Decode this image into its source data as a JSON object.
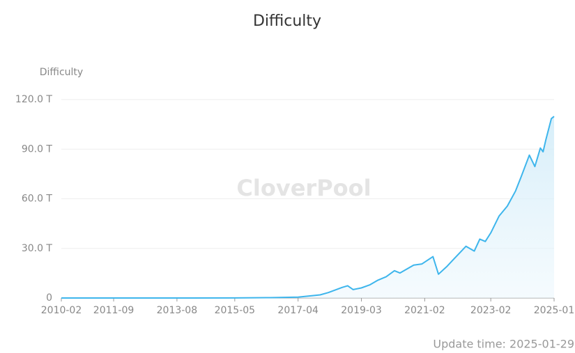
{
  "chart_data": {
    "type": "area",
    "title": "Difficulty",
    "y_axis_label": "Difficulty",
    "watermark": "CloverPool",
    "footer": "Update time: 2025-01-29",
    "x": [
      "2010-02",
      "2012-01",
      "2014-01",
      "2015-05",
      "2016-06",
      "2017-04",
      "2017-12",
      "2018-03",
      "2018-08",
      "2018-10",
      "2018-12",
      "2019-03",
      "2019-06",
      "2019-09",
      "2019-12",
      "2020-03",
      "2020-05",
      "2020-10",
      "2021-01",
      "2021-05",
      "2021-07",
      "2021-10",
      "2022-01",
      "2022-05",
      "2022-08",
      "2022-10",
      "2022-12",
      "2023-02",
      "2023-05",
      "2023-08",
      "2023-11",
      "2024-01",
      "2024-04",
      "2024-06",
      "2024-08",
      "2024-09",
      "2024-10",
      "2024-12",
      "2025-01"
    ],
    "series": [
      {
        "name": "Difficulty",
        "color": "#3db5ec",
        "values": [
          0,
          0,
          0.001,
          0.05,
          0.2,
          0.5,
          1.9,
          3.3,
          6.4,
          7.4,
          5.1,
          6.1,
          7.9,
          10.8,
          12.9,
          16.5,
          15.1,
          19.9,
          20.6,
          25.0,
          14.4,
          19.0,
          24.3,
          31.3,
          28.4,
          35.6,
          34.2,
          39.4,
          49.5,
          55.6,
          64.7,
          73.2,
          86.4,
          79.5,
          90.7,
          88.4,
          95.7,
          108.5,
          109.8
        ]
      }
    ],
    "xticks": [
      "2010-02",
      "2011-09",
      "2013-08",
      "2015-05",
      "2017-04",
      "2019-03",
      "2021-02",
      "2023-02",
      "2025-01"
    ],
    "xlim": [
      "2010-02",
      "2025-01"
    ],
    "ylim": [
      0,
      120
    ],
    "yticks": [
      0,
      {
        "value": 30,
        "label": "30.0 T"
      },
      {
        "value": 60,
        "label": "60.0 T"
      },
      {
        "value": 90,
        "label": "90.0 T"
      },
      {
        "value": 120,
        "label": "120.0 T"
      }
    ],
    "grid": true
  }
}
